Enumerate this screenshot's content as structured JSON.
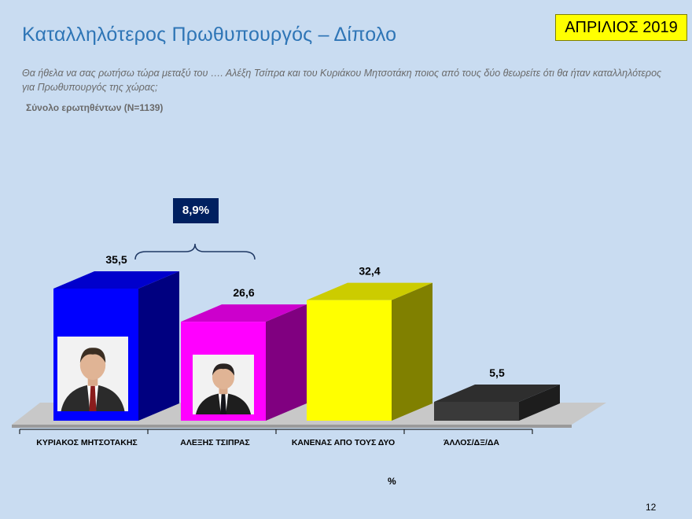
{
  "header": {
    "title": "Καταλληλότερος Πρωθυπουργός – Δίπολο",
    "date_badge": "ΑΠΡΙΛΙΟΣ 2019",
    "question": "Θα ήθελα να σας ρωτήσω τώρα μεταξύ του …. Αλέξη Τσίπρα και του Κυριάκου Μητσοτάκη ποιος από τους δύο θεωρείτε ότι θα ήταν καταλληλότερος για Πρωθυπουργός της χώρας;",
    "base": "Σύνολο ερωτηθέντων (N=1139)"
  },
  "chart_data": {
    "type": "bar",
    "categories": [
      "ΚΥΡΙΑΚΟΣ ΜΗΤΣΟΤΑΚΗΣ",
      "ΑΛΕΞΗΣ ΤΣΙΠΡΑΣ",
      "ΚΑΝΕΝΑΣ ΑΠΟ ΤΟΥΣ ΔΥΟ",
      "ΆΛΛΟΣ/ΔΞ/ΔΑ"
    ],
    "values": [
      35.5,
      26.6,
      32.4,
      5.5
    ],
    "value_labels": [
      "35,5",
      "26,6",
      "32,4",
      "5,5"
    ],
    "colors": [
      "#0000ff",
      "#ff00ff",
      "#ffff00",
      "#3a3a3a"
    ],
    "ylim": [
      0,
      40
    ],
    "xlabel": "%",
    "three_d": true,
    "annotation": {
      "text": "8,9%",
      "between": [
        "ΚΥΡΙΑΚΟΣ ΜΗΤΣΟΤΑΚΗΣ",
        "ΑΛΕΞΗΣ ΤΣΙΠΡΑΣ"
      ]
    }
  },
  "photos": [
    {
      "label": "Κυριάκος Μητσοτάκης",
      "suit": "#2b2b2b",
      "tie": "#8a1c1c"
    },
    {
      "label": "Αλέξης Τσίπρας",
      "suit": "#1e1e1e",
      "tie": "#14141a"
    }
  ],
  "footer": {
    "page_number": "12"
  }
}
